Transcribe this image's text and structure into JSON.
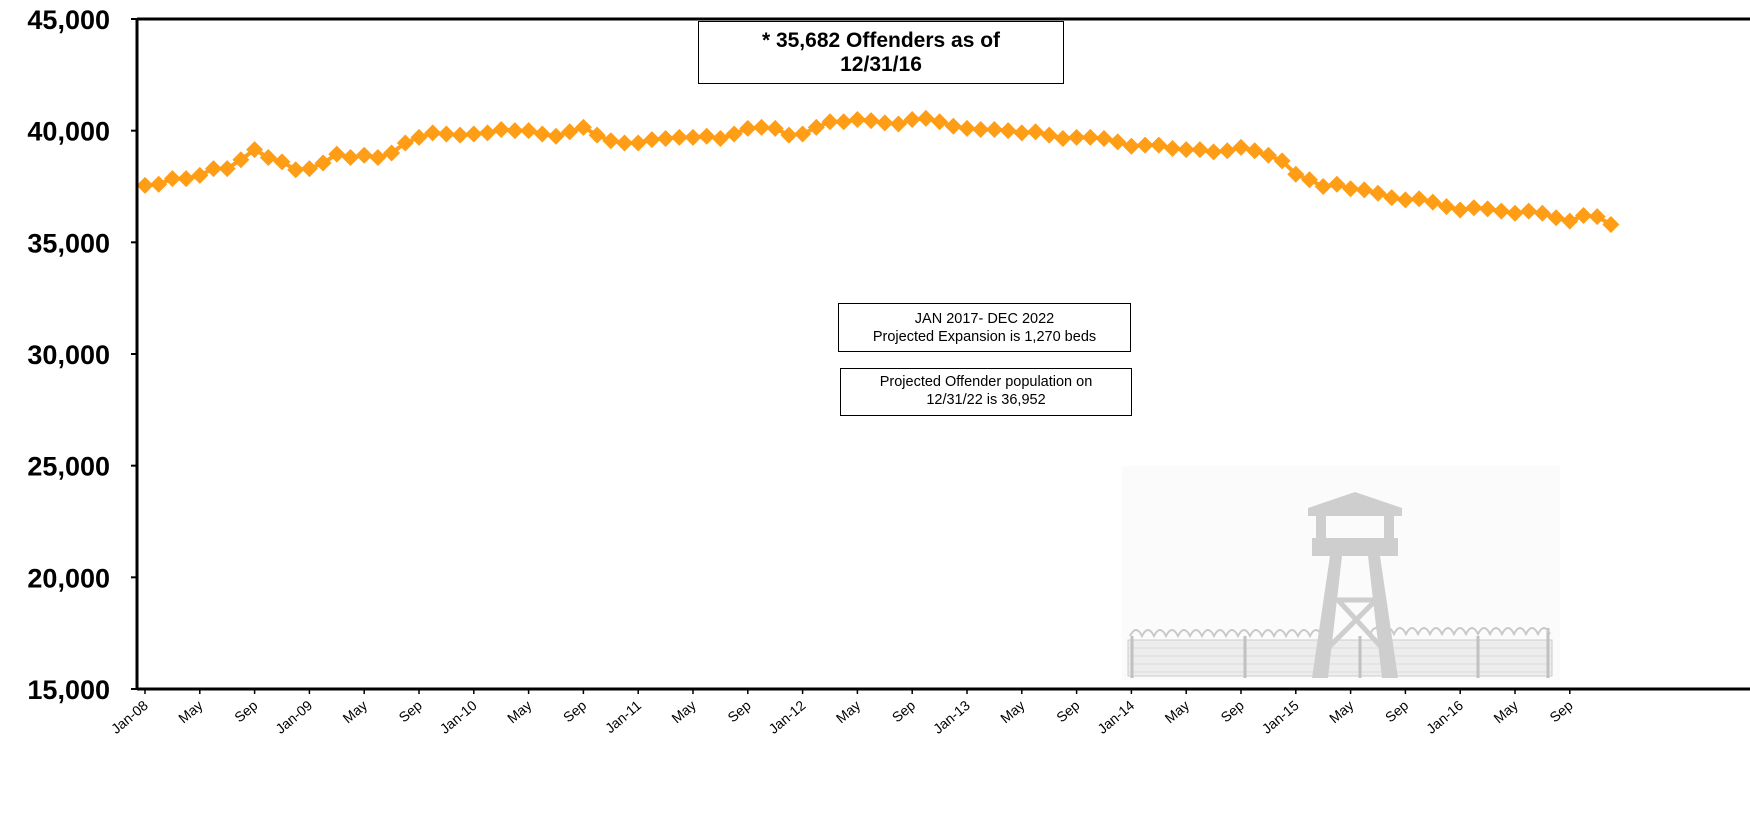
{
  "chart_data": {
    "type": "line",
    "title": "",
    "xlabel": "",
    "ylabel": "",
    "ylim": [
      15000,
      45000
    ],
    "yticks": [
      "15,000",
      "20,000",
      "25,000",
      "30,000",
      "35,000",
      "40,000",
      "45,000"
    ],
    "ytick_values": [
      15000,
      20000,
      25000,
      30000,
      35000,
      40000,
      45000
    ],
    "xtick_labels": [
      "Jan-08",
      "May",
      "Sep",
      "Jan-09",
      "May",
      "Sep",
      "Jan-10",
      "May",
      "Sep",
      "Jan-11",
      "May",
      "Sep",
      "Jan-12",
      "May",
      "Sep",
      "Jan-13",
      "May",
      "Sep",
      "Jan-14",
      "May",
      "Sep",
      "Jan-15",
      "May",
      "Sep",
      "Jan-16",
      "May",
      "Sep"
    ],
    "series_color": "#FF9E16",
    "marker": "diamond",
    "grid": false,
    "legend": "none",
    "x": [
      "2008-01",
      "2008-02",
      "2008-03",
      "2008-04",
      "2008-05",
      "2008-06",
      "2008-07",
      "2008-08",
      "2008-09",
      "2008-10",
      "2008-11",
      "2008-12",
      "2009-01",
      "2009-02",
      "2009-03",
      "2009-04",
      "2009-05",
      "2009-06",
      "2009-07",
      "2009-08",
      "2009-09",
      "2009-10",
      "2009-11",
      "2009-12",
      "2010-01",
      "2010-02",
      "2010-03",
      "2010-04",
      "2010-05",
      "2010-06",
      "2010-07",
      "2010-08",
      "2010-09",
      "2010-10",
      "2010-11",
      "2010-12",
      "2011-01",
      "2011-02",
      "2011-03",
      "2011-04",
      "2011-05",
      "2011-06",
      "2011-07",
      "2011-08",
      "2011-09",
      "2011-10",
      "2011-11",
      "2011-12",
      "2012-01",
      "2012-02",
      "2012-03",
      "2012-04",
      "2012-05",
      "2012-06",
      "2012-07",
      "2012-08",
      "2012-09",
      "2012-10",
      "2012-11",
      "2012-12",
      "2013-01",
      "2013-02",
      "2013-03",
      "2013-04",
      "2013-05",
      "2013-06",
      "2013-07",
      "2013-08",
      "2013-09",
      "2013-10",
      "2013-11",
      "2013-12",
      "2014-01",
      "2014-02",
      "2014-03",
      "2014-04",
      "2014-05",
      "2014-06",
      "2014-07",
      "2014-08",
      "2014-09",
      "2014-10",
      "2014-11",
      "2014-12",
      "2015-01",
      "2015-02",
      "2015-03",
      "2015-04",
      "2015-05",
      "2015-06",
      "2015-07",
      "2015-08",
      "2015-09",
      "2015-10",
      "2015-11",
      "2015-12",
      "2016-01",
      "2016-02",
      "2016-03",
      "2016-04",
      "2016-05",
      "2016-06",
      "2016-07",
      "2016-08",
      "2016-09",
      "2016-10",
      "2016-11",
      "2016-12"
    ],
    "series": [
      {
        "values": [
          37550,
          37600,
          37850,
          37850,
          38000,
          38300,
          38300,
          38700,
          39150,
          38800,
          38600,
          38250,
          38300,
          38550,
          38950,
          38800,
          38900,
          38800,
          39000,
          39450,
          39700,
          39900,
          39850,
          39800,
          39850,
          39900,
          40050,
          40000,
          40000,
          39850,
          39750,
          39950,
          40150,
          39800,
          39550,
          39450,
          39450,
          39600,
          39650,
          39700,
          39700,
          39750,
          39650,
          39850,
          40100,
          40150,
          40100,
          39800,
          39850,
          40150,
          40400,
          40400,
          40500,
          40450,
          40350,
          40300,
          40500,
          40550,
          40400,
          40200,
          40100,
          40050,
          40050,
          40000,
          39900,
          39950,
          39800,
          39650,
          39700,
          39700,
          39650,
          39500,
          39300,
          39350,
          39350,
          39200,
          39150,
          39150,
          39050,
          39100,
          39250,
          39100,
          38900,
          38650,
          38050,
          37800,
          37500,
          37600,
          37400,
          37350,
          37200,
          37000,
          36900,
          36950,
          36800,
          36600,
          36450,
          36550,
          36500,
          36400,
          36300,
          36400,
          36300,
          36100,
          35950,
          36200,
          36150,
          35800
        ]
      }
    ]
  },
  "annotations": {
    "current_line1": "* 35,682 Offenders as of",
    "current_line2": "12/31/16",
    "expansion_line1": "JAN 2017- DEC 2022",
    "expansion_line2": "Projected Expansion is 1,270 beds",
    "projection_line1": "Projected Offender population on",
    "projection_line2": "12/31/22 is 36,952"
  },
  "watermark": "watchtower-fence-icon"
}
